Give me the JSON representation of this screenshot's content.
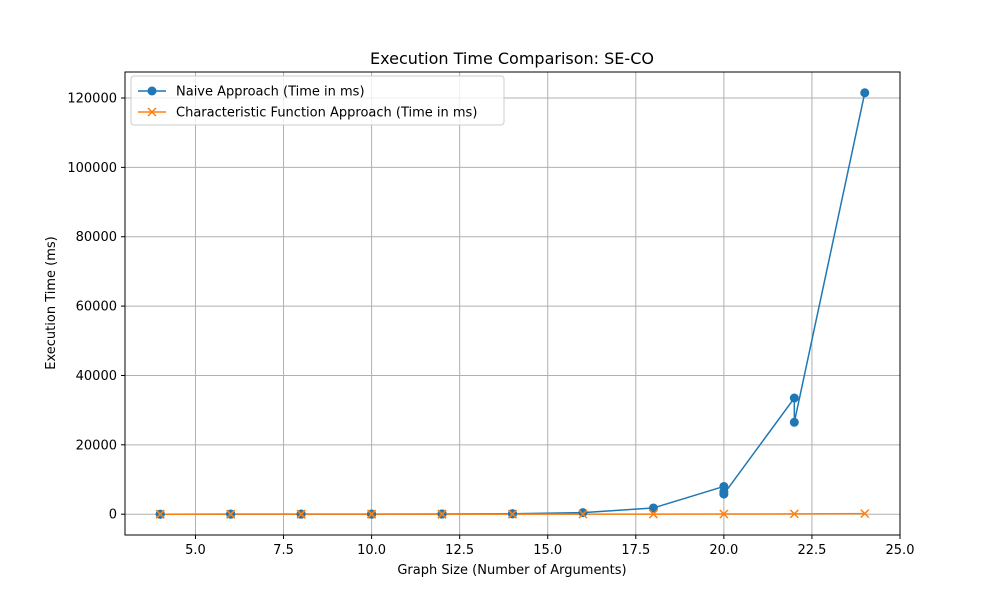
{
  "chart_data": {
    "type": "line",
    "title": "Execution Time Comparison: SE-CO",
    "xlabel": "Graph Size (Number of Arguments)",
    "ylabel": "Execution Time (ms)",
    "xlim": [
      3,
      25
    ],
    "ylim": [
      -6000,
      127500
    ],
    "xticks": [
      5.0,
      7.5,
      10.0,
      12.5,
      15.0,
      17.5,
      20.0,
      22.5,
      25.0
    ],
    "xtick_labels": [
      "5.0",
      "7.5",
      "10.0",
      "12.5",
      "15.0",
      "17.5",
      "20.0",
      "22.5",
      "25.0"
    ],
    "yticks": [
      0,
      20000,
      40000,
      60000,
      80000,
      100000,
      120000
    ],
    "ytick_labels": [
      "0",
      "20000",
      "40000",
      "60000",
      "80000",
      "100000",
      "120000"
    ],
    "grid": true,
    "legend_position": "top-left",
    "series": [
      {
        "name": "Naive Approach (Time in ms)",
        "color": "#1f77b4",
        "marker": "circle",
        "x": [
          4,
          4,
          4,
          6,
          6,
          6,
          8,
          8,
          8,
          10,
          10,
          10,
          12,
          12,
          12,
          14,
          14,
          14,
          16,
          18,
          20,
          20,
          20,
          22,
          22,
          24
        ],
        "y": [
          1,
          1,
          1,
          2,
          2,
          2,
          5,
          5,
          5,
          15,
          15,
          15,
          40,
          40,
          40,
          120,
          120,
          120,
          450,
          1800,
          8000,
          6500,
          5800,
          33500,
          26500,
          121500
        ]
      },
      {
        "name": "Characteristic Function Approach (Time in ms)",
        "color": "#ff7f0e",
        "marker": "x",
        "x": [
          4,
          4,
          4,
          6,
          6,
          6,
          8,
          8,
          8,
          10,
          10,
          10,
          12,
          12,
          12,
          14,
          14,
          14,
          16,
          18,
          20,
          22,
          24
        ],
        "y": [
          1,
          1,
          1,
          2,
          2,
          2,
          3,
          3,
          3,
          5,
          5,
          5,
          8,
          8,
          8,
          12,
          12,
          12,
          20,
          30,
          50,
          90,
          160
        ]
      }
    ]
  }
}
